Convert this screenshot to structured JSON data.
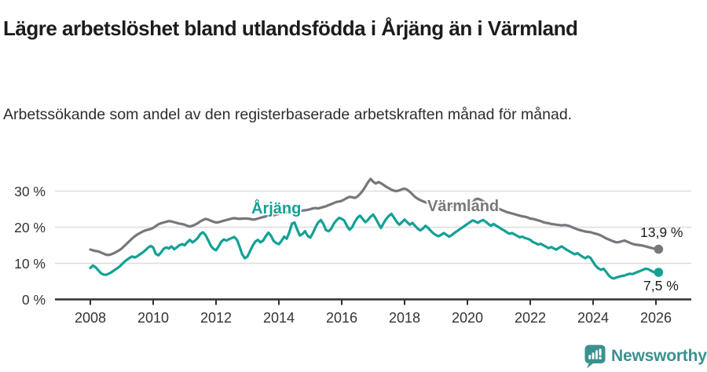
{
  "header": {
    "title": "Lägre arbetslöshet bland utlandsfödda i Årjäng än i Värmland",
    "subtitle": "Arbetssökande som andel av den registerbaserade arbetskraften månad för månad."
  },
  "footer": {
    "brand": "Newsworthy",
    "brand_color": "#3a918f"
  },
  "chart_data": {
    "type": "line",
    "title": "Lägre arbetslöshet bland utlandsfödda i Årjäng än i Värmland",
    "subtitle": "Arbetssökande som andel av den registerbaserade arbetskraften månad för månad.",
    "xlabel": "",
    "ylabel": "",
    "grid": true,
    "legend_position": "inline-labels",
    "x_start": 2008,
    "x_step_months": 1,
    "x_end_label_period": "2026-02",
    "xlim": [
      2006.9,
      2027.1
    ],
    "ylim": [
      0,
      35
    ],
    "x_ticks": [
      2008,
      2010,
      2012,
      2014,
      2016,
      2018,
      2020,
      2022,
      2024,
      2026
    ],
    "y_ticks": [
      {
        "value": 0,
        "label": "0 %"
      },
      {
        "value": 10,
        "label": "10 %"
      },
      {
        "value": 20,
        "label": "20 %"
      },
      {
        "value": 30,
        "label": "30 %"
      }
    ],
    "series": [
      {
        "name": "Värmland",
        "color": "#77777c",
        "end_value": 13.9,
        "end_label": "13,9 %",
        "values": [
          13.8,
          13.6,
          13.4,
          13.3,
          13.0,
          12.7,
          12.4,
          12.3,
          12.5,
          12.8,
          13.2,
          13.6,
          14.1,
          14.8,
          15.5,
          16.2,
          16.9,
          17.5,
          18.0,
          18.4,
          18.8,
          19.1,
          19.3,
          19.5,
          19.8,
          20.3,
          20.8,
          21.1,
          21.3,
          21.5,
          21.7,
          21.6,
          21.4,
          21.2,
          21.0,
          20.9,
          20.7,
          20.4,
          20.2,
          20.4,
          20.7,
          21.1,
          21.6,
          22.0,
          22.3,
          22.1,
          21.8,
          21.5,
          21.3,
          21.4,
          21.6,
          21.8,
          22.0,
          22.2,
          22.4,
          22.5,
          22.4,
          22.3,
          22.4,
          22.4,
          22.4,
          22.3,
          22.1,
          22.2,
          22.4,
          22.6,
          22.8,
          23.0,
          23.1,
          23.2,
          23.3,
          23.5,
          23.7,
          24.1,
          24.4,
          24.1,
          23.9,
          24.0,
          24.1,
          24.3,
          24.5,
          24.6,
          24.7,
          24.8,
          25.0,
          25.2,
          25.3,
          25.2,
          25.4,
          25.6,
          25.8,
          26.1,
          26.4,
          26.7,
          27.0,
          27.1,
          27.3,
          27.7,
          28.1,
          28.4,
          28.3,
          28.1,
          28.5,
          29.2,
          30.1,
          31.2,
          32.4,
          33.4,
          32.6,
          32.1,
          32.5,
          32.2,
          31.7,
          31.2,
          30.8,
          30.4,
          30.1,
          30.0,
          30.2,
          30.5,
          30.7,
          30.4,
          29.8,
          29.1,
          28.4,
          27.9,
          27.5,
          27.2,
          26.9,
          26.7,
          26.5,
          26.4,
          26.2,
          26.0,
          25.9,
          26.1,
          26.2,
          26.0,
          25.8,
          25.6,
          25.5,
          25.4,
          25.3,
          25.2,
          25.3,
          25.9,
          26.9,
          27.7,
          27.9,
          27.6,
          27.2,
          26.8,
          26.4,
          26.0,
          25.7,
          25.4,
          25.1,
          24.8,
          24.5,
          24.2,
          24.0,
          23.8,
          23.6,
          23.4,
          23.2,
          23.0,
          22.9,
          22.7,
          22.4,
          22.3,
          22.1,
          21.9,
          21.7,
          21.4,
          21.2,
          21.1,
          20.9,
          20.8,
          20.7,
          20.6,
          20.5,
          20.6,
          20.5,
          20.3,
          20.0,
          19.7,
          19.4,
          19.2,
          19.0,
          18.8,
          18.7,
          18.6,
          18.4,
          18.2,
          18.0,
          17.7,
          17.3,
          16.9,
          16.6,
          16.3,
          16.0,
          15.8,
          15.9,
          16.1,
          16.3,
          16.0,
          15.7,
          15.4,
          15.2,
          15.1,
          15.0,
          14.9,
          14.7,
          14.5,
          14.3,
          14.1,
          14.0,
          13.9
        ]
      },
      {
        "name": "Årjäng",
        "color": "#12a195",
        "end_value": 7.5,
        "end_label": "7,5 %",
        "values": [
          8.7,
          9.4,
          8.9,
          8.1,
          7.3,
          6.9,
          6.8,
          7.1,
          7.5,
          8.0,
          8.5,
          9.0,
          9.7,
          10.4,
          11.0,
          11.5,
          11.9,
          11.6,
          12.0,
          12.5,
          13.0,
          13.6,
          14.3,
          14.8,
          14.4,
          12.6,
          12.2,
          13.0,
          14.0,
          14.4,
          14.1,
          14.7,
          13.9,
          14.4,
          15.0,
          15.3,
          15.0,
          15.8,
          16.5,
          15.8,
          16.3,
          17.0,
          18.1,
          18.6,
          17.8,
          16.4,
          14.9,
          14.0,
          13.6,
          14.7,
          16.0,
          16.6,
          16.3,
          16.7,
          17.0,
          17.3,
          16.5,
          14.6,
          12.5,
          11.4,
          11.9,
          13.4,
          14.9,
          16.0,
          16.5,
          15.8,
          16.3,
          17.5,
          18.5,
          17.6,
          16.2,
          15.6,
          15.3,
          16.2,
          17.4,
          16.8,
          18.6,
          21.0,
          21.3,
          19.4,
          17.7,
          18.1,
          18.9,
          17.6,
          17.1,
          18.4,
          20.0,
          21.3,
          22.0,
          20.9,
          19.2,
          18.9,
          19.6,
          21.0,
          21.9,
          22.6,
          22.3,
          21.8,
          20.3,
          19.3,
          20.0,
          21.5,
          22.6,
          23.2,
          22.3,
          21.4,
          22.0,
          22.9,
          23.5,
          22.4,
          21.0,
          19.8,
          21.1,
          22.3,
          23.1,
          23.7,
          22.6,
          21.5,
          20.7,
          21.4,
          22.1,
          21.4,
          20.7,
          21.2,
          20.4,
          19.6,
          19.1,
          19.6,
          20.4,
          19.8,
          19.0,
          18.3,
          17.8,
          17.5,
          17.9,
          18.4,
          17.9,
          17.4,
          17.8,
          18.4,
          18.9,
          19.4,
          19.9,
          20.4,
          20.9,
          21.4,
          21.9,
          21.6,
          21.2,
          21.7,
          22.0,
          21.5,
          20.9,
          20.4,
          20.9,
          20.4,
          20.0,
          19.5,
          19.1,
          18.6,
          18.2,
          18.4,
          18.0,
          17.6,
          17.2,
          17.4,
          17.0,
          16.8,
          16.5,
          15.9,
          15.6,
          15.2,
          15.4,
          15.0,
          14.6,
          14.2,
          14.5,
          14.1,
          13.8,
          14.3,
          14.7,
          14.2,
          13.7,
          13.3,
          12.9,
          12.5,
          12.8,
          12.3,
          11.8,
          11.4,
          11.9,
          11.5,
          10.4,
          9.3,
          8.6,
          8.2,
          8.5,
          7.6,
          6.6,
          6.0,
          5.8,
          6.1,
          6.3,
          6.5,
          6.6,
          6.9,
          7.1,
          7.0,
          7.3,
          7.6,
          7.9,
          8.2,
          8.5,
          8.4,
          8.0,
          7.6,
          7.3,
          7.5
        ]
      }
    ]
  }
}
